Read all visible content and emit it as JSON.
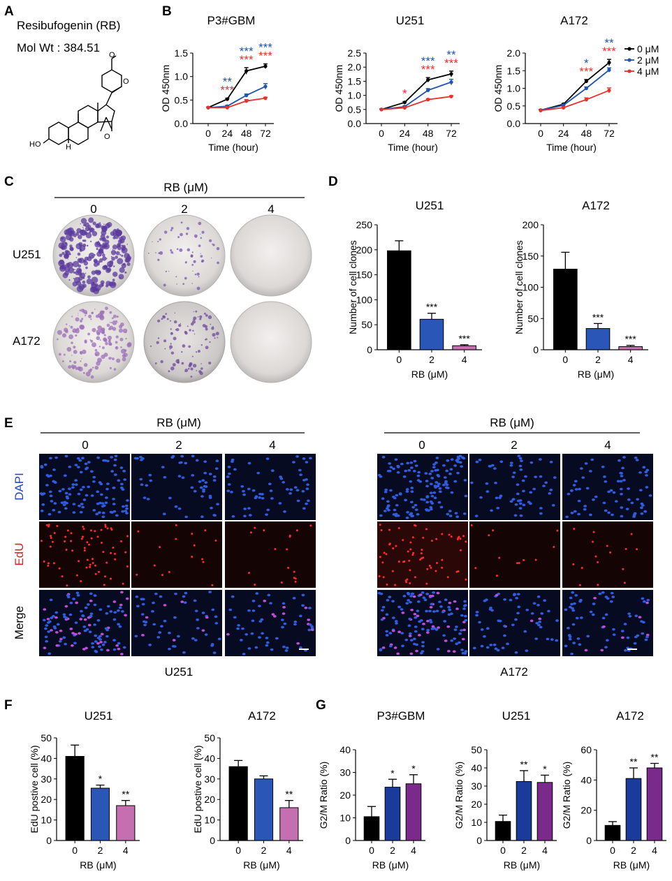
{
  "panel_labels": [
    "A",
    "B",
    "C",
    "D",
    "E",
    "F",
    "G"
  ],
  "colors": {
    "black": "#000000",
    "blue": "#1e55b3",
    "red": "#e8312a",
    "mid_blue": "#2a56b8",
    "purple": "#7b2a8c",
    "pink": "#c66fb0",
    "navy": "#1a3b9c"
  },
  "panel_a": {
    "title": "Resibufogenin (RB)",
    "mol_wt": "Mol Wt : 384.51",
    "atoms": {
      "oxo": "O",
      "ring_o": "O",
      "epoxide_o": "O",
      "hydroxyl": "HO",
      "hydrogen": "H"
    }
  },
  "panel_c": {
    "header": "RB (μM)",
    "doses": [
      "0",
      "2",
      "4"
    ],
    "rows": [
      "U251",
      "A172"
    ]
  },
  "panel_e": {
    "header": "RB (μM)",
    "doses": [
      "0",
      "2",
      "4"
    ],
    "rows": [
      "DAPI",
      "EdU",
      "Merge"
    ],
    "groups": [
      "U251",
      "A172"
    ]
  },
  "chart_data": [
    {
      "panel": "B",
      "type": "line",
      "title": "P3#GBM",
      "xlabel": "Time (hour)",
      "ylabel": "OD 450nm",
      "x": [
        0,
        24,
        48,
        72
      ],
      "xticks": [
        "0",
        "24",
        "48",
        "72"
      ],
      "ylim": [
        0,
        1.5
      ],
      "yticks": [
        "0.0",
        "0.5",
        "1.0",
        "1.5"
      ],
      "series": [
        {
          "name": "0 μM",
          "color": "#000000",
          "values": [
            0.34,
            0.52,
            1.12,
            1.22
          ],
          "errors": [
            0.01,
            0.02,
            0.07,
            0.05
          ]
        },
        {
          "name": "2 μM",
          "color": "#1e55b3",
          "values": [
            0.34,
            0.37,
            0.6,
            0.79
          ],
          "errors": [
            0.01,
            0.02,
            0.03,
            0.06
          ]
        },
        {
          "name": "4 μM",
          "color": "#e8312a",
          "values": [
            0.34,
            0.34,
            0.48,
            0.54
          ],
          "errors": [
            0.01,
            0.01,
            0.03,
            0.02
          ]
        }
      ],
      "annotations": [
        {
          "x": 24,
          "lines": [
            {
              "text": "**",
              "color": "#1e55b3"
            },
            {
              "text": "***",
              "color": "#e8312a"
            }
          ]
        },
        {
          "x": 48,
          "lines": [
            {
              "text": "***",
              "color": "#1e55b3"
            },
            {
              "text": "***",
              "color": "#e8312a"
            }
          ]
        },
        {
          "x": 72,
          "lines": [
            {
              "text": "***",
              "color": "#1e55b3"
            },
            {
              "text": "***",
              "color": "#e8312a"
            }
          ]
        }
      ]
    },
    {
      "panel": "B",
      "type": "line",
      "title": "U251",
      "xlabel": "Time (hour)",
      "ylabel": "OD 450nm",
      "x": [
        0,
        24,
        48,
        72
      ],
      "xticks": [
        "0",
        "24",
        "48",
        "72"
      ],
      "ylim": [
        0,
        2.5
      ],
      "yticks": [
        "0.0",
        "0.5",
        "1.0",
        "1.5",
        "2.0",
        "2.5"
      ],
      "series": [
        {
          "name": "0 μM",
          "color": "#000000",
          "values": [
            0.5,
            0.75,
            1.55,
            1.76
          ],
          "errors": [
            0.02,
            0.03,
            0.08,
            0.1
          ]
        },
        {
          "name": "2 μM",
          "color": "#1e55b3",
          "values": [
            0.5,
            0.6,
            1.18,
            1.47
          ],
          "errors": [
            0.02,
            0.03,
            0.06,
            0.1
          ]
        },
        {
          "name": "4 μM",
          "color": "#e8312a",
          "values": [
            0.5,
            0.56,
            0.85,
            0.96
          ],
          "errors": [
            0.02,
            0.02,
            0.03,
            0.03
          ]
        }
      ],
      "annotations": [
        {
          "x": 24,
          "lines": [
            {
              "text": "*",
              "color": "#e8312a"
            }
          ]
        },
        {
          "x": 48,
          "lines": [
            {
              "text": "***",
              "color": "#1e55b3"
            },
            {
              "text": "***",
              "color": "#e8312a"
            }
          ]
        },
        {
          "x": 72,
          "lines": [
            {
              "text": "**",
              "color": "#1e55b3"
            },
            {
              "text": "***",
              "color": "#e8312a"
            }
          ]
        }
      ]
    },
    {
      "panel": "B",
      "type": "line",
      "title": "A172",
      "xlabel": "Time (hour)",
      "ylabel": "OD 450nm",
      "x": [
        0,
        24,
        48,
        72
      ],
      "xticks": [
        "0",
        "24",
        "48",
        "72"
      ],
      "ylim": [
        0,
        2.0
      ],
      "yticks": [
        "0.0",
        "0.5",
        "1.0",
        "1.5",
        "2.0"
      ],
      "series": [
        {
          "name": "0 μM",
          "color": "#000000",
          "values": [
            0.38,
            0.55,
            1.2,
            1.73
          ],
          "errors": [
            0.02,
            0.02,
            0.05,
            0.09
          ]
        },
        {
          "name": "2 μM",
          "color": "#1e55b3",
          "values": [
            0.38,
            0.52,
            1.0,
            1.52
          ],
          "errors": [
            0.02,
            0.02,
            0.04,
            0.06
          ]
        },
        {
          "name": "4 μM",
          "color": "#e8312a",
          "values": [
            0.37,
            0.45,
            0.68,
            0.94
          ],
          "errors": [
            0.02,
            0.02,
            0.05,
            0.07
          ]
        }
      ],
      "annotations": [
        {
          "x": 48,
          "lines": [
            {
              "text": "*",
              "color": "#1e55b3"
            },
            {
              "text": "***",
              "color": "#e8312a"
            }
          ]
        },
        {
          "x": 72,
          "lines": [
            {
              "text": "**",
              "color": "#1e55b3"
            },
            {
              "text": "***",
              "color": "#e8312a"
            }
          ]
        }
      ],
      "legend": [
        "0 μM",
        "2 μM",
        "4 μM"
      ]
    },
    {
      "panel": "D",
      "type": "bar",
      "title": "U251",
      "xlabel": "RB (μM)",
      "ylabel": "Number of cell clones",
      "categories": [
        "0",
        "2",
        "4"
      ],
      "values": [
        198,
        61,
        8
      ],
      "errors": [
        20,
        12,
        2
      ],
      "colors": [
        "#000000",
        "#2a56b8",
        "#c66fb0"
      ],
      "stars": [
        "",
        "***",
        "***"
      ],
      "ylim": [
        0,
        250
      ],
      "yticks": [
        "0",
        "50",
        "100",
        "150",
        "200",
        "250"
      ]
    },
    {
      "panel": "D",
      "type": "bar",
      "title": "A172",
      "xlabel": "RB (μM)",
      "ylabel": "Number of cell clones",
      "categories": [
        "0",
        "2",
        "4"
      ],
      "values": [
        129,
        34,
        5
      ],
      "errors": [
        27,
        8,
        2
      ],
      "colors": [
        "#000000",
        "#2a56b8",
        "#c66fb0"
      ],
      "stars": [
        "",
        "***",
        "***"
      ],
      "ylim": [
        0,
        200
      ],
      "yticks": [
        "0",
        "50",
        "100",
        "150",
        "200"
      ]
    },
    {
      "panel": "F",
      "type": "bar",
      "title": "U251",
      "xlabel": "RB (μM)",
      "ylabel": "EdU postive cell (%)",
      "categories": [
        "0",
        "2",
        "4"
      ],
      "values": [
        41,
        25.5,
        17
      ],
      "errors": [
        5.5,
        1.5,
        2.5
      ],
      "colors": [
        "#000000",
        "#2a56b8",
        "#c66fb0"
      ],
      "stars": [
        "",
        "*",
        "**"
      ],
      "ylim": [
        0,
        50
      ],
      "yticks": [
        "0",
        "10",
        "20",
        "30",
        "40",
        "50"
      ]
    },
    {
      "panel": "F",
      "type": "bar",
      "title": "A172",
      "xlabel": "RB (μM)",
      "ylabel": "EdU postive cell (%)",
      "categories": [
        "0",
        "2",
        "4"
      ],
      "values": [
        36,
        30,
        16
      ],
      "errors": [
        3,
        1.5,
        3.5
      ],
      "colors": [
        "#000000",
        "#2a56b8",
        "#c66fb0"
      ],
      "stars": [
        "",
        "",
        "**"
      ],
      "ylim": [
        0,
        50
      ],
      "yticks": [
        "0",
        "10",
        "20",
        "30",
        "40",
        "50"
      ]
    },
    {
      "panel": "G",
      "type": "bar",
      "title": "P3#GBM",
      "xlabel": "RB (μM)",
      "ylabel": "G2/M Ratio (%)",
      "categories": [
        "0",
        "2",
        "4"
      ],
      "values": [
        10.5,
        23.5,
        25
      ],
      "errors": [
        4.5,
        3.5,
        4
      ],
      "colors": [
        "#000000",
        "#1a3b9c",
        "#7b2a8c"
      ],
      "stars": [
        "",
        "*",
        "*"
      ],
      "ylim": [
        0,
        40
      ],
      "yticks": [
        "0",
        "10",
        "20",
        "30",
        "40"
      ]
    },
    {
      "panel": "G",
      "type": "bar",
      "title": "U251",
      "xlabel": "RB (μM)",
      "ylabel": "G2/M Ratio (%)",
      "categories": [
        "0",
        "2",
        "4"
      ],
      "values": [
        10.5,
        32.5,
        32
      ],
      "errors": [
        3.5,
        6,
        4
      ],
      "colors": [
        "#000000",
        "#1a3b9c",
        "#7b2a8c"
      ],
      "stars": [
        "",
        "**",
        "*"
      ],
      "ylim": [
        0,
        50
      ],
      "yticks": [
        "0",
        "10",
        "20",
        "30",
        "40",
        "50"
      ]
    },
    {
      "panel": "G",
      "type": "bar",
      "title": "A172",
      "xlabel": "RB (μM)",
      "ylabel": "G2/M Ratio (%)",
      "categories": [
        "0",
        "2",
        "4"
      ],
      "values": [
        10,
        41,
        48
      ],
      "errors": [
        2.5,
        7,
        3
      ],
      "colors": [
        "#000000",
        "#1a3b9c",
        "#7b2a8c"
      ],
      "stars": [
        "",
        "**",
        "**"
      ],
      "ylim": [
        0,
        60
      ],
      "yticks": [
        "0",
        "20",
        "40",
        "60"
      ]
    }
  ]
}
